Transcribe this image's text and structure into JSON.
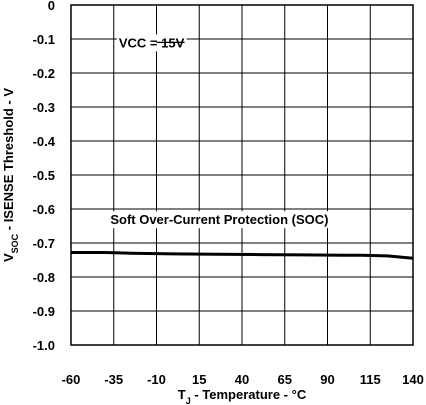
{
  "chart_data": {
    "type": "line",
    "title": "",
    "xlabel_main": "T",
    "xlabel_sub": "J",
    "xlabel_rest": " - Temperature - °C",
    "ylabel_main": "V",
    "ylabel_sub": "SOC",
    "ylabel_rest": " - ISENSE Threshold - V",
    "xlim": [
      -60,
      140
    ],
    "ylim": [
      -1.0,
      0
    ],
    "x_ticks": [
      -60,
      -35,
      -10,
      15,
      40,
      65,
      90,
      115,
      140
    ],
    "x_tick_labels": [
      "-60",
      "-35",
      "-10",
      "15",
      "40",
      "65",
      "90",
      "115",
      "140"
    ],
    "y_ticks": [
      0,
      -0.1,
      -0.2,
      -0.3,
      -0.4,
      -0.5,
      -0.6,
      -0.7,
      -0.8,
      -0.9,
      -1.0
    ],
    "y_tick_labels": [
      "0",
      "-0.1",
      "-0.2",
      "-0.3",
      "-0.4",
      "-0.5",
      "-0.6",
      "-0.7",
      "-0.8",
      "-0.9",
      "-1.0"
    ],
    "grid": true,
    "series": [
      {
        "x": [
          -60,
          -40,
          -25,
          0,
          25,
          50,
          75,
          100,
          110,
          125,
          140
        ],
        "y": [
          -0.728,
          -0.728,
          -0.73,
          -0.732,
          -0.733,
          -0.734,
          -0.735,
          -0.736,
          -0.736,
          -0.738,
          -0.745
        ],
        "color": "#000000"
      }
    ],
    "annotations": [
      {
        "text": "VCC = 15V",
        "x": -32,
        "y": -0.11,
        "leader_to_x": -10
      },
      {
        "text": "Soft Over-Current Protection (SOC)",
        "x": -37,
        "y": -0.63
      }
    ]
  }
}
